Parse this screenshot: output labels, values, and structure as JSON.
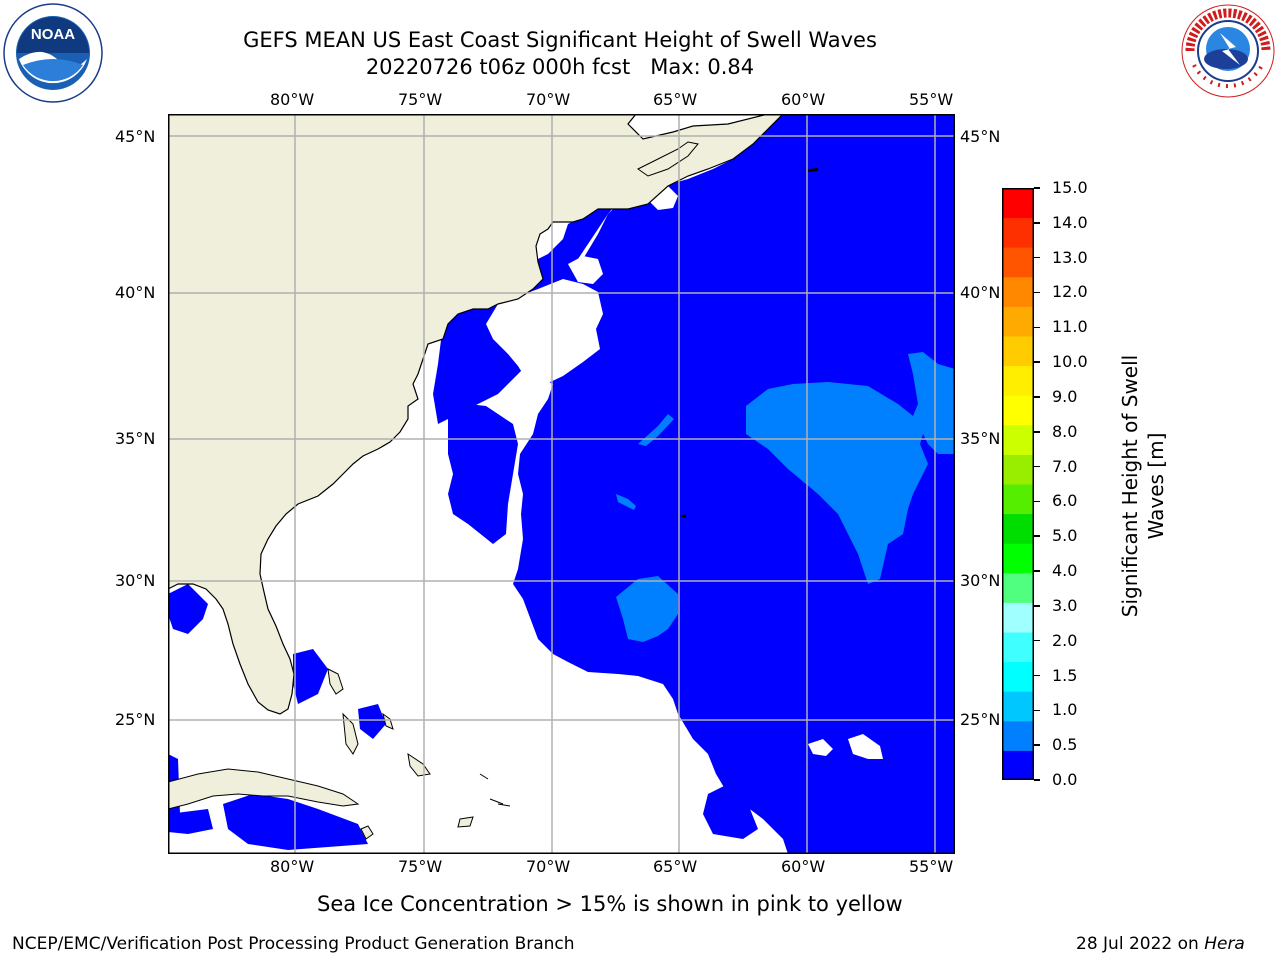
{
  "header": {
    "title_line1": "GEFS MEAN US East Coast Significant Height of Swell Waves",
    "title_line2": "20220726 t06z 000h fcst   Max: 0.84"
  },
  "logos": {
    "left_text": "NOAA",
    "left_ring_text": "NATIONAL OCEANIC AND ATMOSPHERIC ADMINISTRATION · U.S. DEPARTMENT OF COMMERCE",
    "right_ring_text": "NATIONAL WEATHER SERVICE"
  },
  "map": {
    "lon_labels": [
      "80°W",
      "75°W",
      "70°W",
      "65°W",
      "60°W",
      "55°W"
    ],
    "lat_labels": [
      "45°N",
      "40°N",
      "35°N",
      "30°N",
      "25°N"
    ]
  },
  "colorbar": {
    "label_line1": "Significant Height of Swell",
    "label_line2": "Waves [m]",
    "ticks": [
      "0.0",
      "0.5",
      "1.0",
      "1.5",
      "2.0",
      "3.0",
      "4.0",
      "5.0",
      "6.0",
      "7.0",
      "8.0",
      "9.0",
      "10.0",
      "11.0",
      "12.0",
      "13.0",
      "14.0",
      "15.0"
    ],
    "colors": [
      "#0000ff",
      "#0080ff",
      "#00c8ff",
      "#00ffff",
      "#40ffff",
      "#a0ffff",
      "#50ff80",
      "#00ff00",
      "#00dd00",
      "#55ee00",
      "#99ee00",
      "#ccff00",
      "#ffff00",
      "#ffee00",
      "#ffcc00",
      "#ffaa00",
      "#ff8800",
      "#ff5500",
      "#ff3000",
      "#ff0000"
    ]
  },
  "note": "Sea Ice Concentration > 15% is shown in pink to yellow",
  "footer": {
    "left": "NCEP/EMC/Verification Post Processing Product Generation Branch",
    "date": "28 Jul 2022 on ",
    "machine": "Hera"
  },
  "palette": {
    "land": "#efefdc",
    "ocean_low": "#0000ff",
    "ocean_mid": "#0080ff",
    "grid": "#b0b0b0"
  }
}
